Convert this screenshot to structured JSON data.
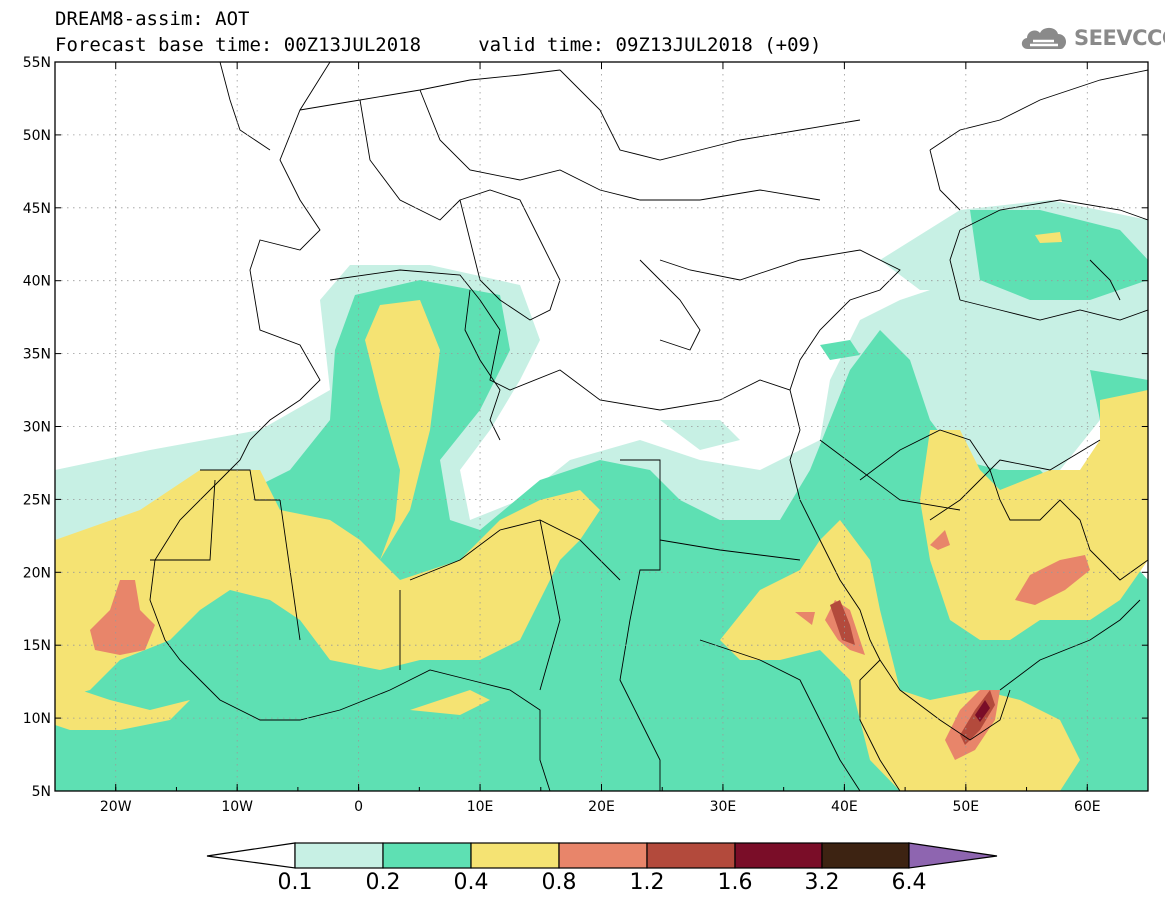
{
  "title": {
    "line1": "DREAM8-assim: AOT",
    "line2": "Forecast base time: 00Z13JUL2018     valid time: 09Z13JUL2018 (+09)"
  },
  "logo": {
    "text": "SEEVCCC",
    "icon": "cloud-icon",
    "color": "#8a8a8a"
  },
  "map": {
    "lon_range": [
      -25,
      65
    ],
    "lat_range": [
      5,
      55
    ],
    "lat_ticks": [
      "5N",
      "10N",
      "15N",
      "20N",
      "25N",
      "30N",
      "35N",
      "40N",
      "45N",
      "50N",
      "55N"
    ],
    "lon_ticks": [
      "20W",
      "10W",
      "0",
      "10E",
      "20E",
      "30E",
      "40E",
      "50E",
      "60E"
    ]
  },
  "legend": {
    "labels": [
      "0.1",
      "0.2",
      "0.4",
      "0.8",
      "1.2",
      "1.6",
      "3.2",
      "6.4"
    ],
    "colors": {
      "below_0.1": "#ffffff",
      "0.1-0.2": "#c7f0e4",
      "0.2-0.4": "#5ee0b3",
      "0.4-0.8": "#f5e373",
      "0.8-1.2": "#e8856a",
      "1.2-1.6": "#b34a3c",
      "1.6-3.2": "#7a0d28",
      "3.2-6.4": "#3d2312",
      "above_6.4": "#8e65b0"
    }
  }
}
